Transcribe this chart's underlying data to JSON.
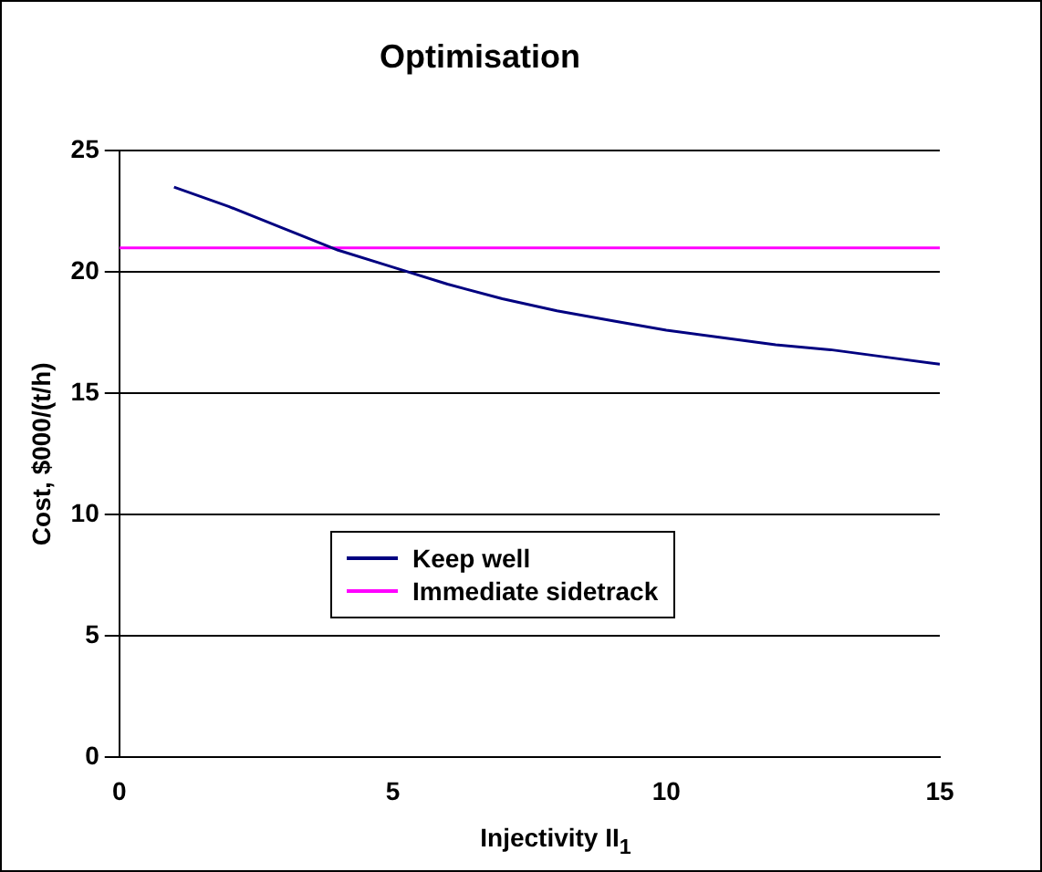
{
  "chart_data": {
    "type": "line",
    "title": "Optimisation",
    "xlabel": "Injectivity II$_{1}$",
    "ylabel": "Cost, $000/(t/h)",
    "xlim": [
      0,
      15
    ],
    "xticks": [
      0,
      5,
      10,
      15
    ],
    "ylim": [
      0,
      25
    ],
    "yticks": [
      0,
      5,
      10,
      15,
      20,
      25
    ],
    "grid": "y",
    "legend": "bottom",
    "marker": "none",
    "series": [
      {
        "name": "Keep well",
        "color": "#000080",
        "x": [
          1,
          2,
          3,
          4,
          5,
          6,
          7,
          8,
          9,
          10,
          11,
          12,
          13,
          14,
          15
        ],
        "values": [
          23.5,
          22.7,
          21.8,
          20.9,
          20.2,
          19.5,
          18.9,
          18.4,
          18.0,
          17.6,
          17.3,
          17.0,
          16.8,
          16.5,
          16.2
        ]
      },
      {
        "name": "Immediate sidetrack",
        "color": "#ff00ff",
        "x": [
          0,
          15
        ],
        "values": [
          21,
          21
        ]
      }
    ]
  }
}
